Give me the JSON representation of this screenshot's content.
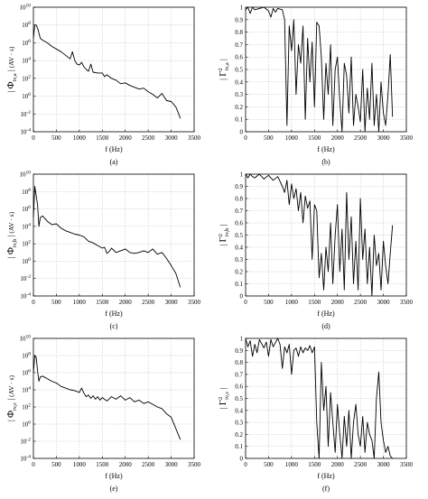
{
  "chart_data": [
    {
      "type": "line",
      "scale_y": "log",
      "caption": "(a)",
      "xlabel": "f     (Hz)",
      "ylabel_sym": "Φ",
      "ylabel_sub": "iv,a",
      "ylabel_unit": "(AV · s)",
      "xlim": [
        0,
        3500
      ],
      "xticks": [
        0,
        500,
        1000,
        1500,
        2000,
        2500,
        3000,
        3500
      ],
      "ylim_exp": [
        -4,
        10
      ],
      "yticks_exp": [
        -4,
        -2,
        0,
        2,
        4,
        6,
        8,
        10
      ],
      "series": [
        {
          "x": [
            0,
            30,
            60,
            100,
            150,
            200,
            300,
            400,
            500,
            600,
            700,
            800,
            850,
            900,
            950,
            1000,
            1050,
            1100,
            1150,
            1200,
            1250,
            1300,
            1400,
            1500,
            1550,
            1600,
            1700,
            1800,
            1900,
            2000,
            2100,
            2200,
            2300,
            2400,
            2500,
            2600,
            2700,
            2800,
            2900,
            3000,
            3100,
            3150,
            3200
          ],
          "y": [
            6.5,
            8.0,
            8.0,
            7.5,
            6.5,
            6.3,
            6.0,
            5.6,
            5.3,
            5.0,
            4.6,
            4.2,
            5.0,
            4.0,
            3.6,
            3.5,
            3.8,
            3.3,
            3.0,
            2.8,
            3.6,
            2.7,
            2.6,
            2.6,
            2.2,
            2.4,
            2.0,
            1.8,
            1.4,
            1.5,
            1.2,
            1.0,
            0.8,
            0.9,
            0.5,
            0.2,
            -0.2,
            0.3,
            -0.5,
            -0.6,
            -1.2,
            -1.8,
            -2.5
          ]
        }
      ]
    },
    {
      "type": "line",
      "caption": "(b)",
      "xlabel": "f     (Hz)",
      "ylabel_sym": "Γ",
      "ylabel_sup": "2",
      "ylabel_sub": "iv,a",
      "xlim": [
        0,
        3500
      ],
      "xticks": [
        0,
        500,
        1000,
        1500,
        2000,
        2500,
        3000,
        3500
      ],
      "ylim": [
        0,
        1
      ],
      "yticks": [
        0,
        0.1,
        0.2,
        0.3,
        0.4,
        0.5,
        0.6,
        0.7,
        0.8,
        0.9,
        1
      ],
      "series": [
        {
          "x": [
            0,
            50,
            100,
            150,
            200,
            300,
            400,
            500,
            550,
            600,
            650,
            700,
            800,
            850,
            900,
            950,
            1000,
            1050,
            1100,
            1150,
            1200,
            1250,
            1300,
            1350,
            1400,
            1450,
            1500,
            1550,
            1600,
            1650,
            1700,
            1750,
            1800,
            1850,
            1900,
            1950,
            2000,
            2050,
            2100,
            2150,
            2200,
            2250,
            2300,
            2350,
            2400,
            2450,
            2500,
            2550,
            2600,
            2650,
            2700,
            2750,
            2800,
            2850,
            2900,
            2950,
            3000,
            3050,
            3100,
            3150,
            3200
          ],
          "y": [
            0.98,
            1.0,
            0.95,
            1.0,
            0.98,
            0.99,
            1.0,
            0.97,
            0.92,
            0.99,
            0.96,
            0.99,
            0.98,
            0.9,
            0.05,
            0.85,
            0.65,
            0.9,
            0.3,
            0.7,
            0.55,
            0.85,
            0.1,
            0.75,
            0.4,
            0.72,
            0.2,
            0.88,
            0.85,
            0.6,
            0.1,
            0.55,
            0.3,
            0.7,
            0.05,
            0.5,
            0.6,
            0.25,
            0.0,
            0.55,
            0.45,
            0.15,
            0.6,
            0.05,
            0.3,
            0.2,
            0.08,
            0.5,
            0.0,
            0.35,
            0.1,
            0.55,
            0.05,
            0.3,
            0.0,
            0.4,
            0.15,
            0.05,
            0.3,
            0.62,
            0.12
          ]
        }
      ]
    },
    {
      "type": "line",
      "scale_y": "log",
      "caption": "(c)",
      "xlabel": "f     (Hz)",
      "ylabel_sym": "Φ",
      "ylabel_sub": "iv,b",
      "ylabel_unit": "(AV · s)",
      "xlim": [
        0,
        3500
      ],
      "xticks": [
        0,
        500,
        1000,
        1500,
        2000,
        2500,
        3000,
        3500
      ],
      "ylim_exp": [
        -4,
        10
      ],
      "yticks_exp": [
        -4,
        -2,
        0,
        2,
        4,
        6,
        8,
        10
      ],
      "series": [
        {
          "x": [
            0,
            30,
            60,
            90,
            120,
            150,
            200,
            300,
            400,
            500,
            600,
            700,
            800,
            900,
            1000,
            1100,
            1200,
            1300,
            1400,
            1500,
            1550,
            1600,
            1650,
            1700,
            1800,
            1900,
            2000,
            2100,
            2200,
            2300,
            2400,
            2500,
            2600,
            2700,
            2800,
            2900,
            3000,
            3100,
            3200
          ],
          "y": [
            5.0,
            8.6,
            7.5,
            6.5,
            4.0,
            5.0,
            5.2,
            4.6,
            4.2,
            4.3,
            3.8,
            3.5,
            3.3,
            3.1,
            3.0,
            2.8,
            2.3,
            2.1,
            1.8,
            1.5,
            1.6,
            0.9,
            1.1,
            1.5,
            1.0,
            1.2,
            1.4,
            1.0,
            0.9,
            1.0,
            1.2,
            1.0,
            1.4,
            0.8,
            1.0,
            0.3,
            -0.5,
            -1.4,
            -3.0
          ]
        }
      ]
    },
    {
      "type": "line",
      "caption": "(d)",
      "xlabel": "f     (Hz)",
      "ylabel_sym": "Γ",
      "ylabel_sup": "2",
      "ylabel_sub": "iv,b",
      "xlim": [
        0,
        3500
      ],
      "xticks": [
        0,
        500,
        1000,
        1500,
        2000,
        2500,
        3000,
        3500
      ],
      "ylim": [
        0,
        1
      ],
      "yticks": [
        0,
        0.1,
        0.2,
        0.3,
        0.4,
        0.5,
        0.6,
        0.7,
        0.8,
        0.9,
        1
      ],
      "series": [
        {
          "x": [
            0,
            50,
            100,
            150,
            200,
            300,
            400,
            500,
            600,
            700,
            800,
            850,
            900,
            950,
            1000,
            1050,
            1100,
            1150,
            1200,
            1250,
            1300,
            1350,
            1400,
            1450,
            1500,
            1550,
            1600,
            1650,
            1700,
            1750,
            1800,
            1850,
            1900,
            1950,
            2000,
            2050,
            2100,
            2150,
            2200,
            2250,
            2300,
            2350,
            2400,
            2450,
            2500,
            2550,
            2600,
            2650,
            2700,
            2750,
            2800,
            2850,
            2900,
            2950,
            3000,
            3050,
            3100,
            3150,
            3200
          ],
          "y": [
            1.0,
            0.97,
            1.0,
            0.98,
            0.97,
            1.0,
            0.96,
            0.99,
            0.95,
            0.98,
            0.9,
            0.85,
            0.95,
            0.75,
            0.92,
            0.8,
            0.88,
            0.7,
            0.85,
            0.6,
            0.82,
            0.72,
            0.78,
            0.3,
            0.75,
            0.7,
            0.15,
            0.35,
            0.05,
            0.4,
            0.2,
            0.6,
            0.1,
            0.5,
            0.75,
            0.2,
            0.55,
            0.05,
            0.85,
            0.3,
            0.65,
            0.1,
            0.45,
            0.05,
            0.8,
            0.3,
            0.55,
            0.1,
            0.4,
            0.0,
            0.5,
            0.25,
            0.35,
            0.05,
            0.45,
            0.25,
            0.1,
            0.35,
            0.58
          ]
        }
      ]
    },
    {
      "type": "line",
      "scale_y": "log",
      "caption": "(e)",
      "xlabel": "f     (Hz)",
      "ylabel_sym": "Φ",
      "ylabel_sub": "iv,c",
      "ylabel_unit": "(AV · s)",
      "xlim": [
        0,
        3500
      ],
      "xticks": [
        0,
        500,
        1000,
        1500,
        2000,
        2500,
        3000,
        3500
      ],
      "ylim_exp": [
        -4,
        10
      ],
      "yticks_exp": [
        -4,
        -2,
        0,
        2,
        4,
        6,
        8,
        10
      ],
      "series": [
        {
          "x": [
            0,
            30,
            60,
            90,
            120,
            150,
            200,
            300,
            400,
            500,
            600,
            700,
            800,
            900,
            1000,
            1050,
            1100,
            1150,
            1200,
            1250,
            1300,
            1350,
            1400,
            1450,
            1500,
            1600,
            1700,
            1800,
            1900,
            2000,
            2100,
            2200,
            2300,
            2400,
            2500,
            2600,
            2700,
            2800,
            2900,
            3000,
            3100,
            3200
          ],
          "y": [
            6.0,
            8.0,
            7.8,
            6.2,
            5.0,
            5.5,
            5.6,
            5.3,
            5.0,
            4.8,
            4.4,
            4.2,
            4.0,
            3.9,
            3.7,
            4.2,
            3.6,
            3.2,
            3.4,
            3.0,
            3.3,
            2.9,
            3.2,
            2.8,
            3.1,
            2.7,
            3.2,
            2.9,
            3.3,
            2.8,
            3.1,
            2.6,
            2.8,
            2.4,
            2.6,
            2.3,
            2.0,
            1.8,
            1.2,
            0.8,
            -0.5,
            -1.8
          ]
        }
      ]
    },
    {
      "type": "line",
      "caption": "(f)",
      "xlabel": "f     (Hz)",
      "ylabel_sym": "Γ",
      "ylabel_sup": "2",
      "ylabel_sub": "iv,c",
      "xlim": [
        0,
        3500
      ],
      "xticks": [
        0,
        500,
        1000,
        1500,
        2000,
        2500,
        3000,
        3500
      ],
      "ylim": [
        0,
        1
      ],
      "yticks": [
        0,
        0.1,
        0.2,
        0.3,
        0.4,
        0.5,
        0.6,
        0.7,
        0.8,
        0.9,
        1
      ],
      "series": [
        {
          "x": [
            0,
            50,
            100,
            150,
            200,
            250,
            300,
            400,
            450,
            500,
            550,
            600,
            700,
            750,
            800,
            850,
            900,
            950,
            1000,
            1050,
            1100,
            1150,
            1200,
            1250,
            1300,
            1350,
            1400,
            1450,
            1500,
            1550,
            1600,
            1650,
            1700,
            1750,
            1800,
            1850,
            1900,
            1950,
            2000,
            2050,
            2100,
            2150,
            2200,
            2250,
            2300,
            2350,
            2400,
            2450,
            2500,
            2550,
            2600,
            2650,
            2700,
            2750,
            2800,
            2850,
            2900,
            2950,
            3000,
            3050,
            3100,
            3150,
            3200
          ],
          "y": [
            1.0,
            0.93,
            0.98,
            0.85,
            0.95,
            0.88,
            0.99,
            0.92,
            0.97,
            0.85,
            0.99,
            0.93,
            1.0,
            0.95,
            0.75,
            0.93,
            0.88,
            0.95,
            0.7,
            0.9,
            0.92,
            0.85,
            0.93,
            0.88,
            0.92,
            0.9,
            0.94,
            0.88,
            0.93,
            0.3,
            0.0,
            0.8,
            0.4,
            0.6,
            0.1,
            0.55,
            0.3,
            0.05,
            0.45,
            0.2,
            0.0,
            0.35,
            0.1,
            0.4,
            0.0,
            0.3,
            0.45,
            0.2,
            0.1,
            0.35,
            0.05,
            0.3,
            0.2,
            0.15,
            0.0,
            0.5,
            0.72,
            0.3,
            0.15,
            0.05,
            0.1,
            0.02,
            0.0
          ]
        }
      ]
    }
  ]
}
